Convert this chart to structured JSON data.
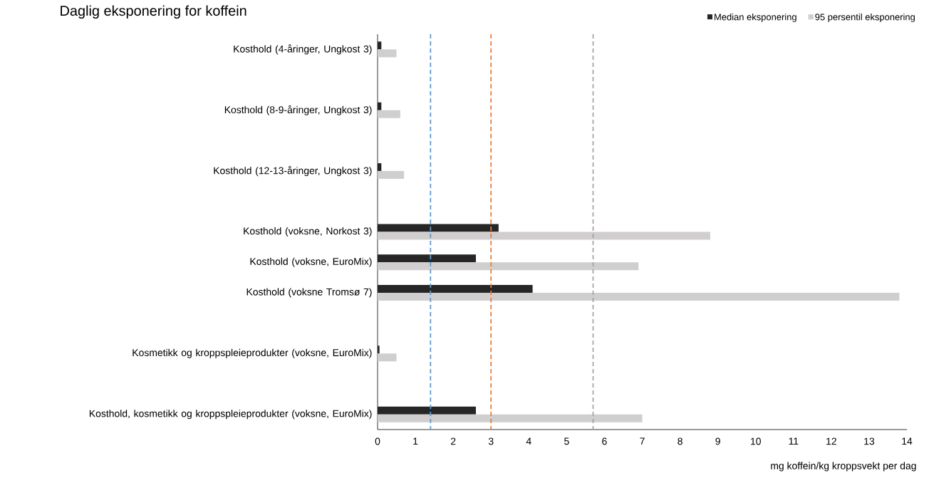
{
  "chart_data": {
    "type": "bar",
    "orientation": "horizontal",
    "title": "Daglig eksponering for koffein",
    "xlabel": "mg koffein/kg kroppsvekt per dag",
    "categories": [
      "Kosthold (4-åringer, Ungkost 3)",
      null,
      "Kosthold (8-9-åringer, Ungkost 3)",
      null,
      "Kosthold (12-13-åringer, Ungkost 3)",
      null,
      "Kosthold (voksne, Norkost 3)",
      "Kosthold (voksne, EuroMix)",
      "Kosthold (voksne Tromsø 7)",
      null,
      "Kosmetikk og kroppspleieprodukter (voksne, EuroMix)",
      null,
      "Kosthold, kosmetikk og kroppspleieprodukter (voksne, EuroMix)"
    ],
    "series": [
      {
        "name": "Median eksponering",
        "color": "#262626",
        "values": [
          0.1,
          null,
          0.1,
          null,
          0.1,
          null,
          3.2,
          2.6,
          4.1,
          null,
          0.05,
          null,
          2.6
        ]
      },
      {
        "name": "95 persentil eksponering",
        "color": "#d0cece",
        "values": [
          0.5,
          null,
          0.6,
          null,
          0.7,
          null,
          8.8,
          6.9,
          13.8,
          null,
          0.5,
          null,
          7.0
        ]
      }
    ],
    "xlim": [
      0,
      14
    ],
    "xticks": [
      0,
      1,
      2,
      3,
      4,
      5,
      6,
      7,
      8,
      9,
      10,
      11,
      12,
      13,
      14
    ],
    "ref_lines": [
      {
        "axis": "x",
        "value": 1.4,
        "color": "#5b9bd5",
        "line_style": "dashed"
      },
      {
        "axis": "x",
        "value": 3.0,
        "color": "#ed7d31",
        "line_style": "dashed"
      },
      {
        "axis": "x",
        "value": 5.7,
        "color": "#a5a5a5",
        "line_style": "dashed"
      }
    ],
    "legend": "top right",
    "grid": false
  }
}
